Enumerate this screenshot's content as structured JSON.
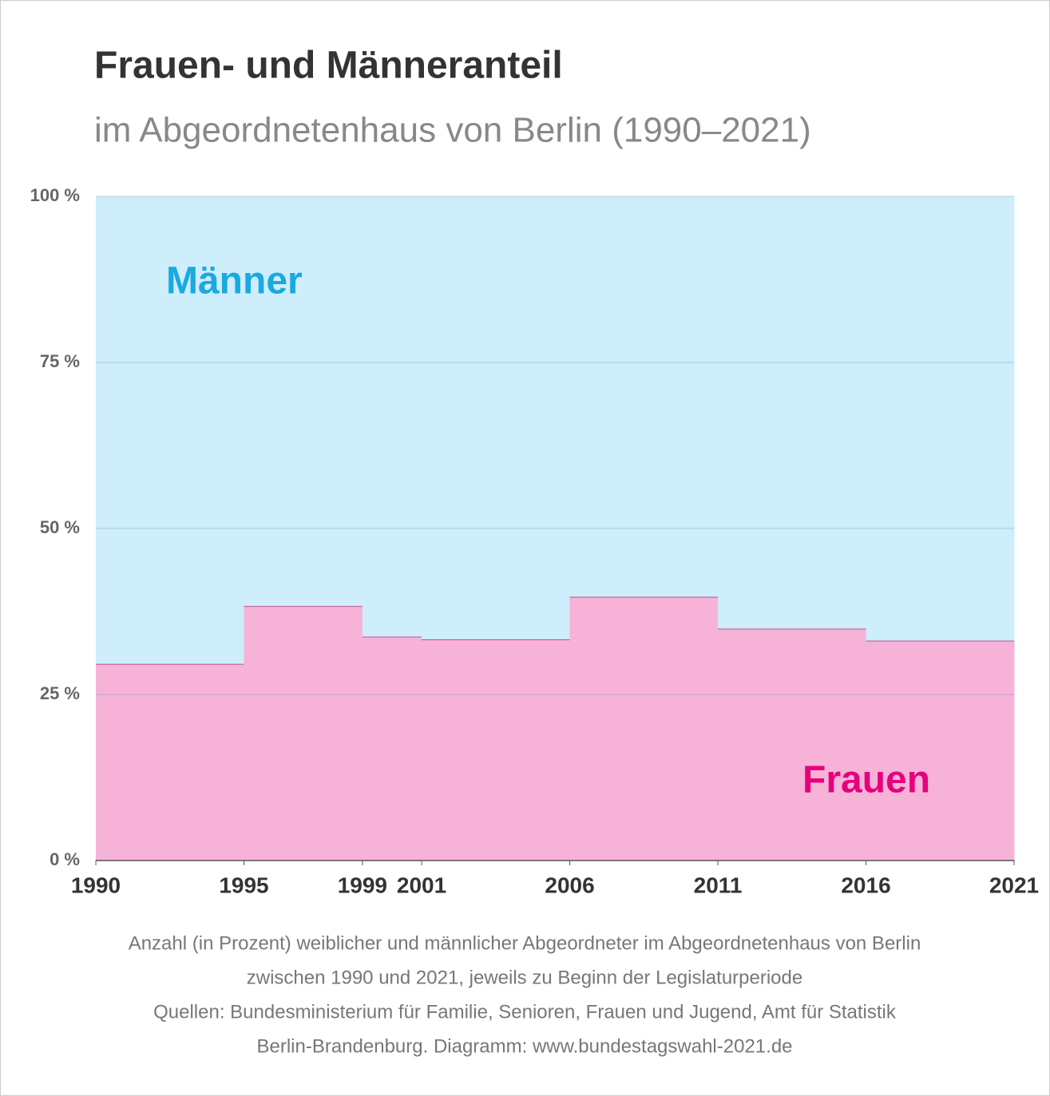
{
  "chart_data": {
    "type": "step-area",
    "title": "Frauen- und Männeranteil",
    "subtitle": "im Abgeordnetenhaus von Berlin (1990–2021)",
    "x": [
      1990,
      1995,
      1999,
      2001,
      2006,
      2011,
      2016
    ],
    "xlim": [
      1990,
      2021
    ],
    "xticks": [
      1990,
      1995,
      1999,
      2001,
      2006,
      2011,
      2016,
      2021
    ],
    "ylim": [
      0,
      100
    ],
    "yticks": [
      {
        "value": 0,
        "label": "0 %"
      },
      {
        "value": 25,
        "label": "25 %"
      },
      {
        "value": 50,
        "label": "50 %"
      },
      {
        "value": 75,
        "label": "75 %"
      },
      {
        "value": 100,
        "label": "100 %"
      }
    ],
    "grid": true,
    "stacked": true,
    "series": [
      {
        "name": "Frauen",
        "color": "#e6007e",
        "fill": "#f7b3d7",
        "values": [
          29.6,
          38.3,
          33.7,
          33.3,
          39.7,
          34.9,
          33.1
        ]
      },
      {
        "name": "Männer",
        "color": "#1aa9e0",
        "fill": "#cdeefa",
        "values": [
          70.4,
          61.7,
          66.3,
          66.7,
          60.3,
          65.1,
          66.9
        ]
      }
    ],
    "caption": [
      "Anzahl (in Prozent) weiblicher und männlicher Abgeordneter im Abgeordnetenhaus von Berlin",
      "zwischen 1990 und 2021, jeweils zu Beginn der Legislaturperiode",
      "Quellen: Bundesministerium für Familie, Senioren, Frauen und Jugend, Amt für Statistik",
      "Berlin-Brandenburg. Diagramm: www.bundestagswahl-2021.de"
    ]
  }
}
